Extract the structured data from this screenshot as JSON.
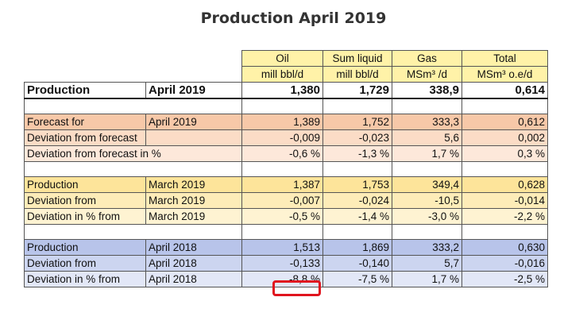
{
  "title": "Production April 2019",
  "header": {
    "cols": [
      {
        "line1": "Oil",
        "line2": "mill bbl/d"
      },
      {
        "line1": "Sum liquid",
        "line2": "mill bbl/d"
      },
      {
        "line1": "Gas",
        "line2": "MSm³ /d"
      },
      {
        "line1": "Total",
        "line2": "MSm³ o.e/d"
      }
    ]
  },
  "production_row": {
    "label": "Production",
    "period": "April 2019",
    "values": [
      "1,380",
      "1,729",
      "338,9",
      "0,614"
    ]
  },
  "forecast_section": [
    {
      "label": "Forecast for",
      "period": "April 2019",
      "values": [
        "1,389",
        "1,752",
        "333,3",
        "0,612"
      ]
    },
    {
      "label": "Deviation from forecast",
      "period": "",
      "values": [
        "-0,009",
        "-0,023",
        "5,6",
        "0,002"
      ]
    },
    {
      "label": "Deviation from forecast in %",
      "period": "",
      "values": [
        "-0,6 %",
        "-1,3 %",
        "1,7 %",
        "0,3 %"
      ]
    }
  ],
  "march_section": [
    {
      "label": "Production",
      "period": "March 2019",
      "values": [
        "1,387",
        "1,753",
        "349,4",
        "0,628"
      ]
    },
    {
      "label": "Deviation from",
      "period": "March 2019",
      "values": [
        "-0,007",
        "-0,024",
        "-10,5",
        "-0,014"
      ]
    },
    {
      "label": "Deviation  in % from",
      "period": "March 2019",
      "values": [
        "-0,5 %",
        "-1,4 %",
        "-3,0 %",
        "-2,2 %"
      ]
    }
  ],
  "april2018_section": [
    {
      "label": "Production",
      "period": "April 2018",
      "values": [
        "1,513",
        "1,869",
        "333,2",
        "0,630"
      ]
    },
    {
      "label": "Deviation from",
      "period": "April 2018",
      "values": [
        "-0,133",
        "-0,140",
        "5,7",
        "-0,016"
      ]
    },
    {
      "label": "Deviation  in % from",
      "period": "April 2018",
      "values": [
        "-8,8 %",
        "-7,5 %",
        "1,7 %",
        "-2,5 %"
      ]
    }
  ],
  "colors": {
    "highlight": "#e0141e",
    "header_fill": "#fff2a8"
  }
}
